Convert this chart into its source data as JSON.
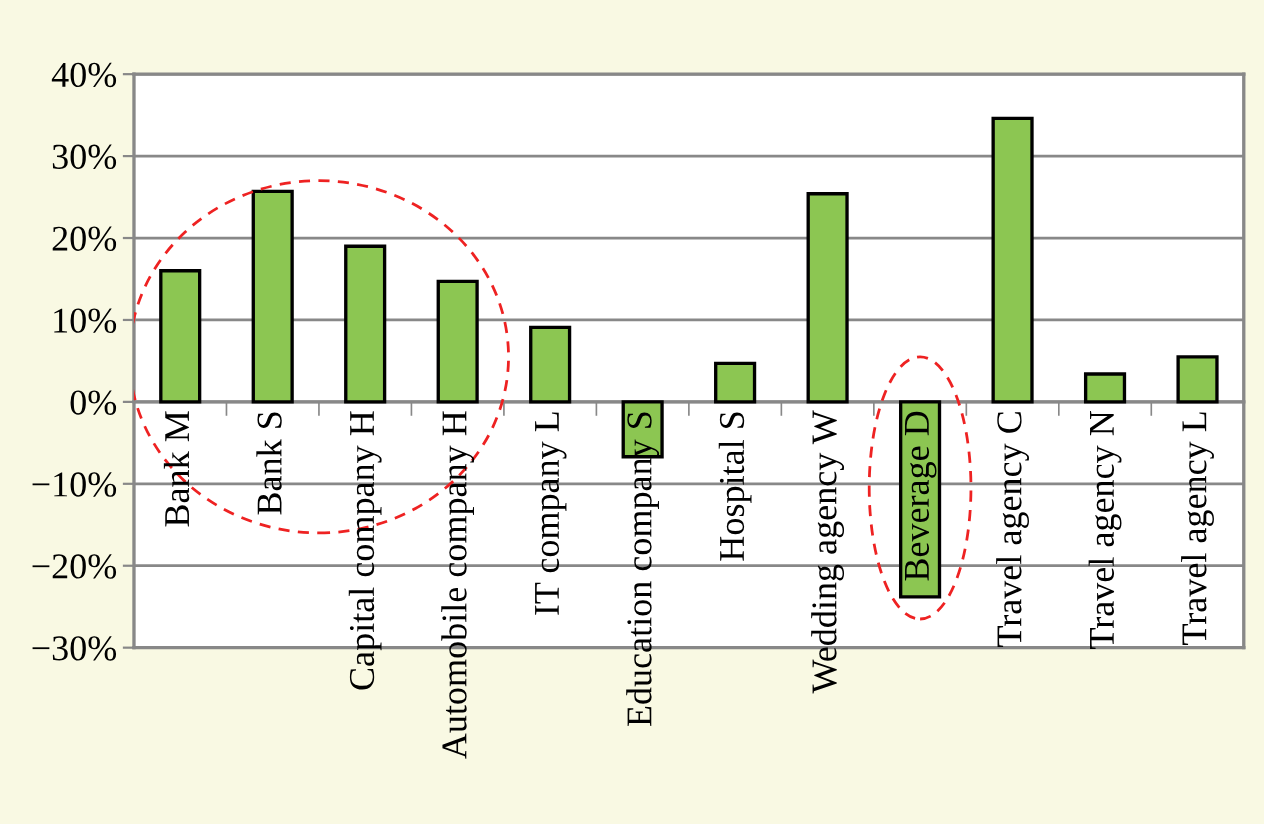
{
  "chart_data": {
    "type": "bar",
    "categories": [
      "Bank M",
      "Bank S",
      "Capital company H",
      "Automobile company H",
      "IT company L",
      "Education company S",
      "Hospital S",
      "Wedding agency W",
      "Beverage D",
      "Travel agency C",
      "Travel agency N",
      "Travel agency L"
    ],
    "values": [
      0.16,
      0.257,
      0.19,
      0.147,
      0.091,
      -0.067,
      0.047,
      0.254,
      -0.238,
      0.346,
      0.034,
      0.055
    ],
    "color": "#8cc652",
    "ylim": [
      -0.3,
      0.4
    ],
    "yticks": [
      {
        "value": -0.3,
        "label": "−30%"
      },
      {
        "value": -0.2,
        "label": "−20%"
      },
      {
        "value": -0.1,
        "label": "−10%"
      },
      {
        "value": 0,
        "label": "0%"
      },
      {
        "value": 0.1,
        "label": "10%"
      },
      {
        "value": 0.2,
        "label": "20%"
      },
      {
        "value": 0.3,
        "label": "30%"
      },
      {
        "value": 0.4,
        "label": "40%"
      }
    ],
    "grid": "y"
  }
}
